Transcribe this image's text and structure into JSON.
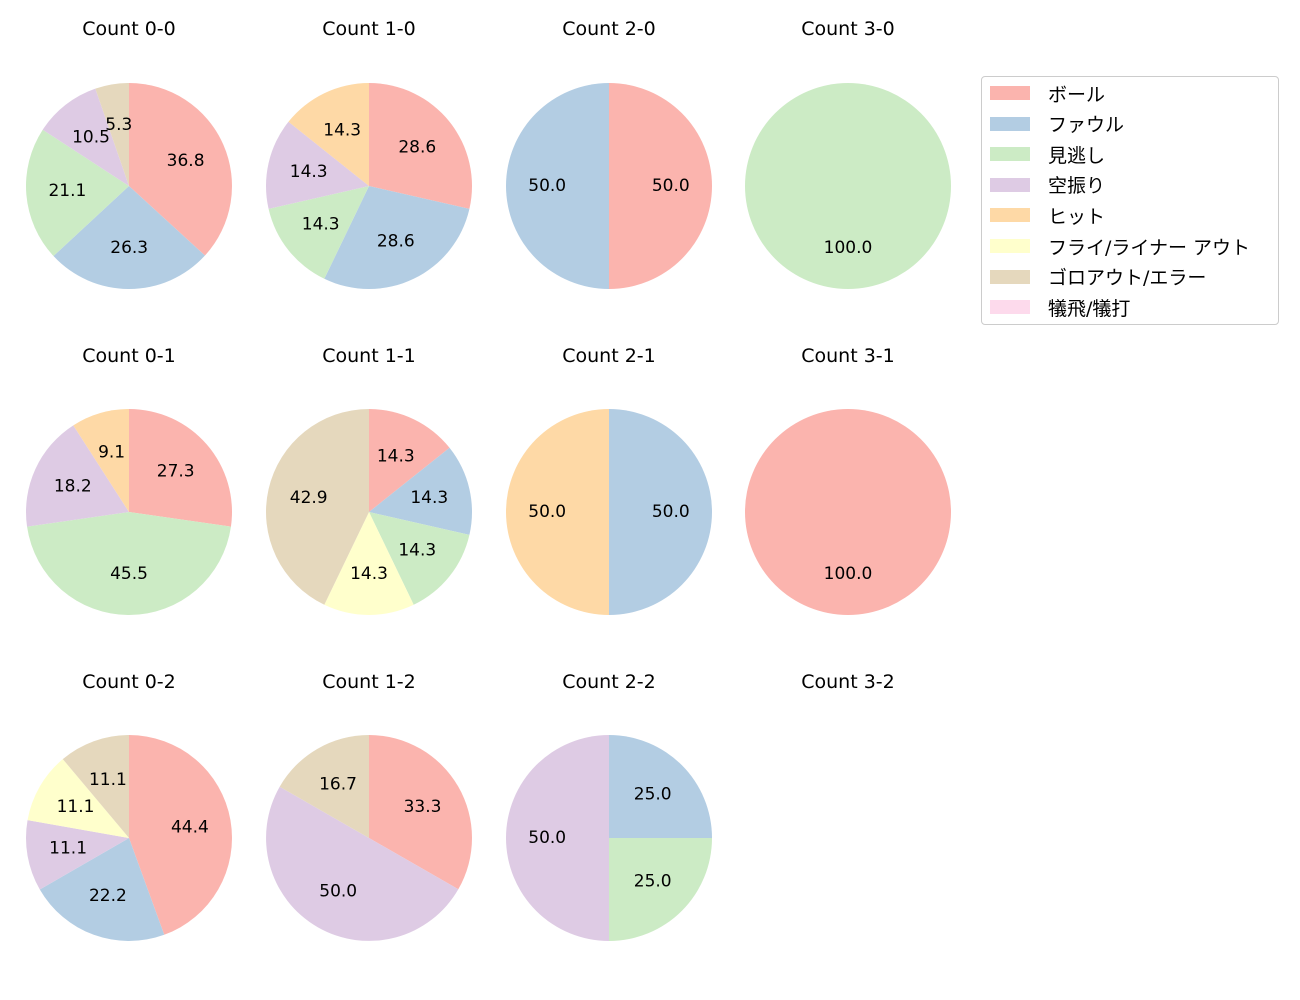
{
  "chart_data": {
    "type": "pie",
    "legend_position": "top-right",
    "categories": [
      "ボール",
      "ファウル",
      "見逃し",
      "空振り",
      "ヒット",
      "フライ/ライナー アウト",
      "ゴロアウト/エラー",
      "犠飛/犠打"
    ],
    "colors": [
      "#fbb4ae",
      "#b3cde3",
      "#ccebc5",
      "#decbe4",
      "#fed9a6",
      "#ffffcc",
      "#e5d8bd",
      "#fddaec"
    ],
    "panels": [
      {
        "title": "Count 0-0",
        "values": [
          36.8,
          26.3,
          21.1,
          10.5,
          0,
          0,
          5.3,
          0
        ]
      },
      {
        "title": "Count 1-0",
        "values": [
          28.6,
          28.6,
          14.3,
          14.3,
          14.3,
          0,
          0,
          0
        ]
      },
      {
        "title": "Count 2-0",
        "values": [
          50.0,
          50.0,
          0,
          0,
          0,
          0,
          0,
          0
        ]
      },
      {
        "title": "Count 3-0",
        "values": [
          0,
          0,
          100.0,
          0,
          0,
          0,
          0,
          0
        ]
      },
      {
        "title": "Count 0-1",
        "values": [
          27.3,
          0,
          45.5,
          18.2,
          9.1,
          0,
          0,
          0
        ]
      },
      {
        "title": "Count 1-1",
        "values": [
          14.3,
          14.3,
          14.3,
          0,
          0,
          14.3,
          42.9,
          0
        ]
      },
      {
        "title": "Count 2-1",
        "values": [
          0,
          50.0,
          0,
          0,
          50.0,
          0,
          0,
          0
        ]
      },
      {
        "title": "Count 3-1",
        "values": [
          100.0,
          0,
          0,
          0,
          0,
          0,
          0,
          0
        ]
      },
      {
        "title": "Count 0-2",
        "values": [
          44.4,
          22.2,
          0,
          11.1,
          0,
          11.1,
          11.1,
          0
        ]
      },
      {
        "title": "Count 1-2",
        "values": [
          33.3,
          0,
          0,
          50.0,
          0,
          0,
          16.7,
          0
        ]
      },
      {
        "title": "Count 2-2",
        "values": [
          0,
          25.0,
          25.0,
          50.0,
          0,
          0,
          0,
          0
        ]
      },
      {
        "title": "Count 3-2",
        "values": []
      }
    ]
  }
}
